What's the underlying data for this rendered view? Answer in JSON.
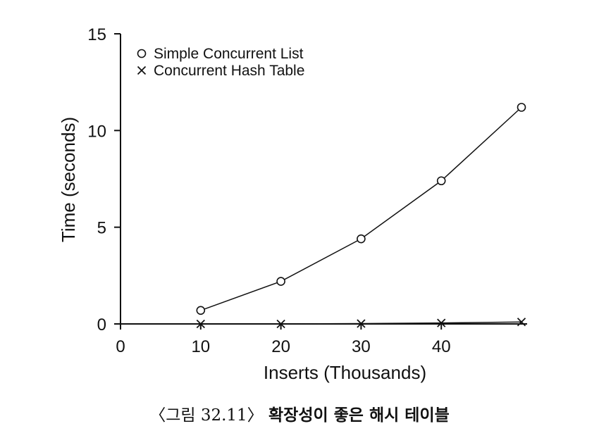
{
  "chart_data": {
    "type": "line",
    "xlabel": "Inserts (Thousands)",
    "ylabel": "Time (seconds)",
    "xlim": [
      0,
      50
    ],
    "ylim": [
      0,
      15
    ],
    "xticks": [
      0,
      10,
      20,
      30,
      40
    ],
    "yticks": [
      0,
      5,
      10,
      15
    ],
    "grid": false,
    "legend_position": "top-left",
    "series": [
      {
        "name": "Simple Concurrent List",
        "marker": "circle",
        "x": [
          10,
          20,
          30,
          40,
          50
        ],
        "y": [
          0.7,
          2.2,
          4.4,
          7.4,
          11.2
        ]
      },
      {
        "name": "Concurrent Hash Table",
        "marker": "cross",
        "x": [
          10,
          20,
          30,
          40,
          50
        ],
        "y": [
          0.0,
          0.0,
          0.02,
          0.05,
          0.1
        ]
      }
    ]
  },
  "caption": {
    "number": "〈그림 32.11〉",
    "title": "확장성이 좋은 해시 테이블"
  }
}
